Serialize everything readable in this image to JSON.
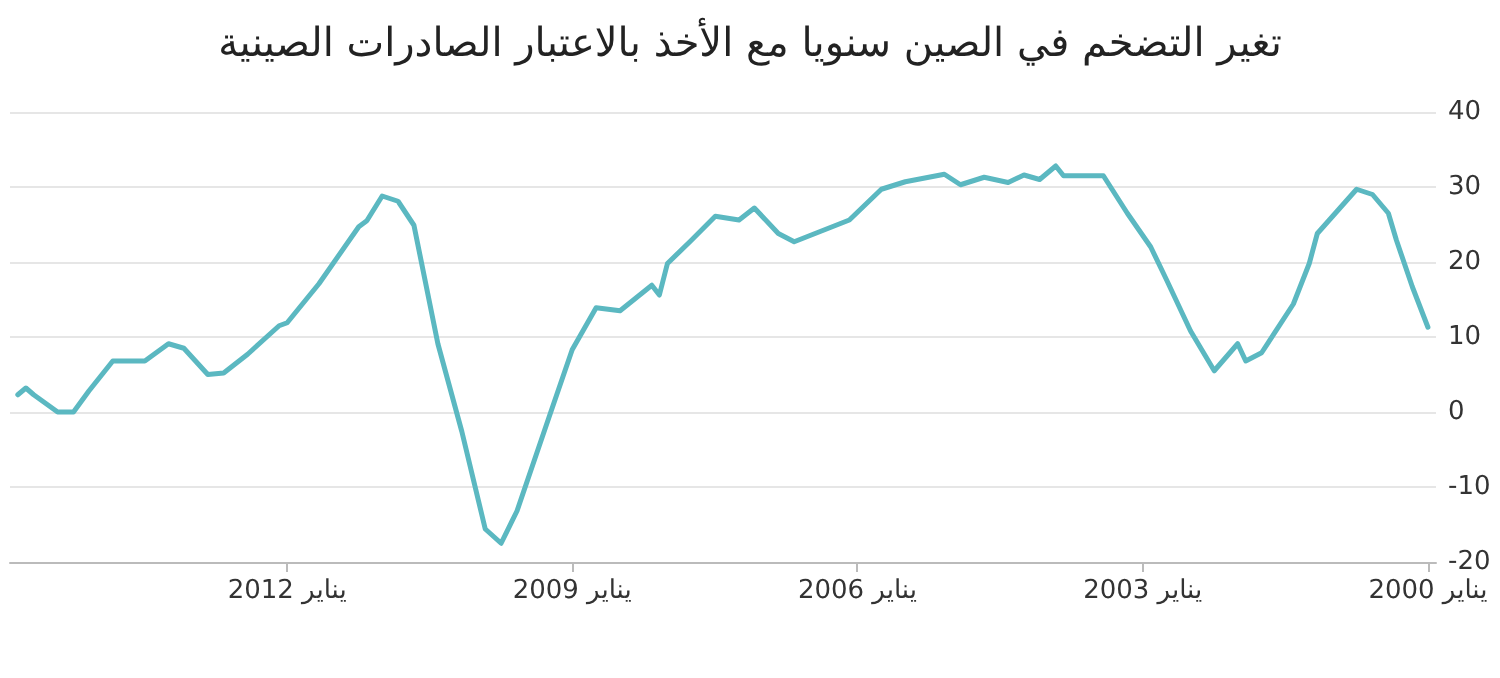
{
  "chart_data": {
    "type": "line",
    "title": "تغير التضخم في الصين سنويا مع الأخذ بالاعتبار الصادرات الصينية",
    "x": [
      "2014-11",
      "2014-10",
      "2014-09",
      "2014-06",
      "2014-04",
      "2014-02",
      "2013-11",
      "2013-07",
      "2013-04",
      "2013-02",
      "2012-11",
      "2012-09",
      "2012-06",
      "2012-02",
      "2012-01",
      "2011-09",
      "2011-04",
      "2011-03",
      "2011-01",
      "2010-11",
      "2010-09",
      "2010-06",
      "2010-03",
      "2009-12",
      "2009-10",
      "2009-08",
      "2009-04",
      "2009-01",
      "2008-10",
      "2008-07",
      "2008-03",
      "2008-02",
      "2008-01",
      "2007-10",
      "2007-07",
      "2007-04",
      "2007-02",
      "2006-11",
      "2006-09",
      "2006-02",
      "2005-10",
      "2005-07",
      "2005-02",
      "2004-12",
      "2004-09",
      "2004-06",
      "2004-04",
      "2004-02",
      "2003-12",
      "2003-11",
      "2003-06",
      "2003-03",
      "2002-12",
      "2002-10",
      "2002-07",
      "2002-04",
      "2002-01",
      "2001-12",
      "2001-10",
      "2001-06",
      "2001-04",
      "2001-03",
      "2000-10",
      "2000-08",
      "2000-06",
      "2000-05",
      "2000-03",
      "2000-01"
    ],
    "series": [
      {
        "color": "#5bb8c1",
        "values": [
          2.3,
          3.2,
          2.3,
          0,
          0,
          2.8,
          6.8,
          6.8,
          9.1,
          8.5,
          5.0,
          5.2,
          7.7,
          11.5,
          11.9,
          17.1,
          24.7,
          25.5,
          28.8,
          28.1,
          24.9,
          9.1,
          -2.6,
          -15.6,
          -17.5,
          -13.2,
          -0.8,
          8.3,
          13.9,
          13.5,
          16.9,
          15.6,
          19.8,
          22.9,
          26.1,
          25.6,
          27.2,
          23.8,
          22.7,
          25.6,
          29.7,
          30.7,
          31.7,
          30.3,
          31.3,
          30.6,
          31.6,
          31.0,
          32.8,
          31.5,
          31.5,
          26.5,
          22.0,
          17.6,
          10.8,
          5.5,
          9.1,
          6.8,
          7.9,
          14.4,
          19.8,
          23.8,
          29.7,
          29.0,
          26.5,
          22.9,
          16.7,
          11.3
        ]
      }
    ],
    "xlim": [
      "2014-12",
      "1999-12"
    ],
    "xticks": [
      {
        "value": "2012-01",
        "label": "يناير 2012"
      },
      {
        "value": "2009-01",
        "label": "يناير 2009"
      },
      {
        "value": "2006-01",
        "label": "يناير 2006"
      },
      {
        "value": "2003-01",
        "label": "يناير 2003"
      },
      {
        "value": "2000-01",
        "label": "يناير 2000"
      }
    ],
    "ylim": [
      -20,
      40
    ],
    "yticks": [
      -20,
      -10,
      0,
      10,
      20,
      30,
      40
    ],
    "grid": "y",
    "marker": "none",
    "line_style": "solid"
  }
}
